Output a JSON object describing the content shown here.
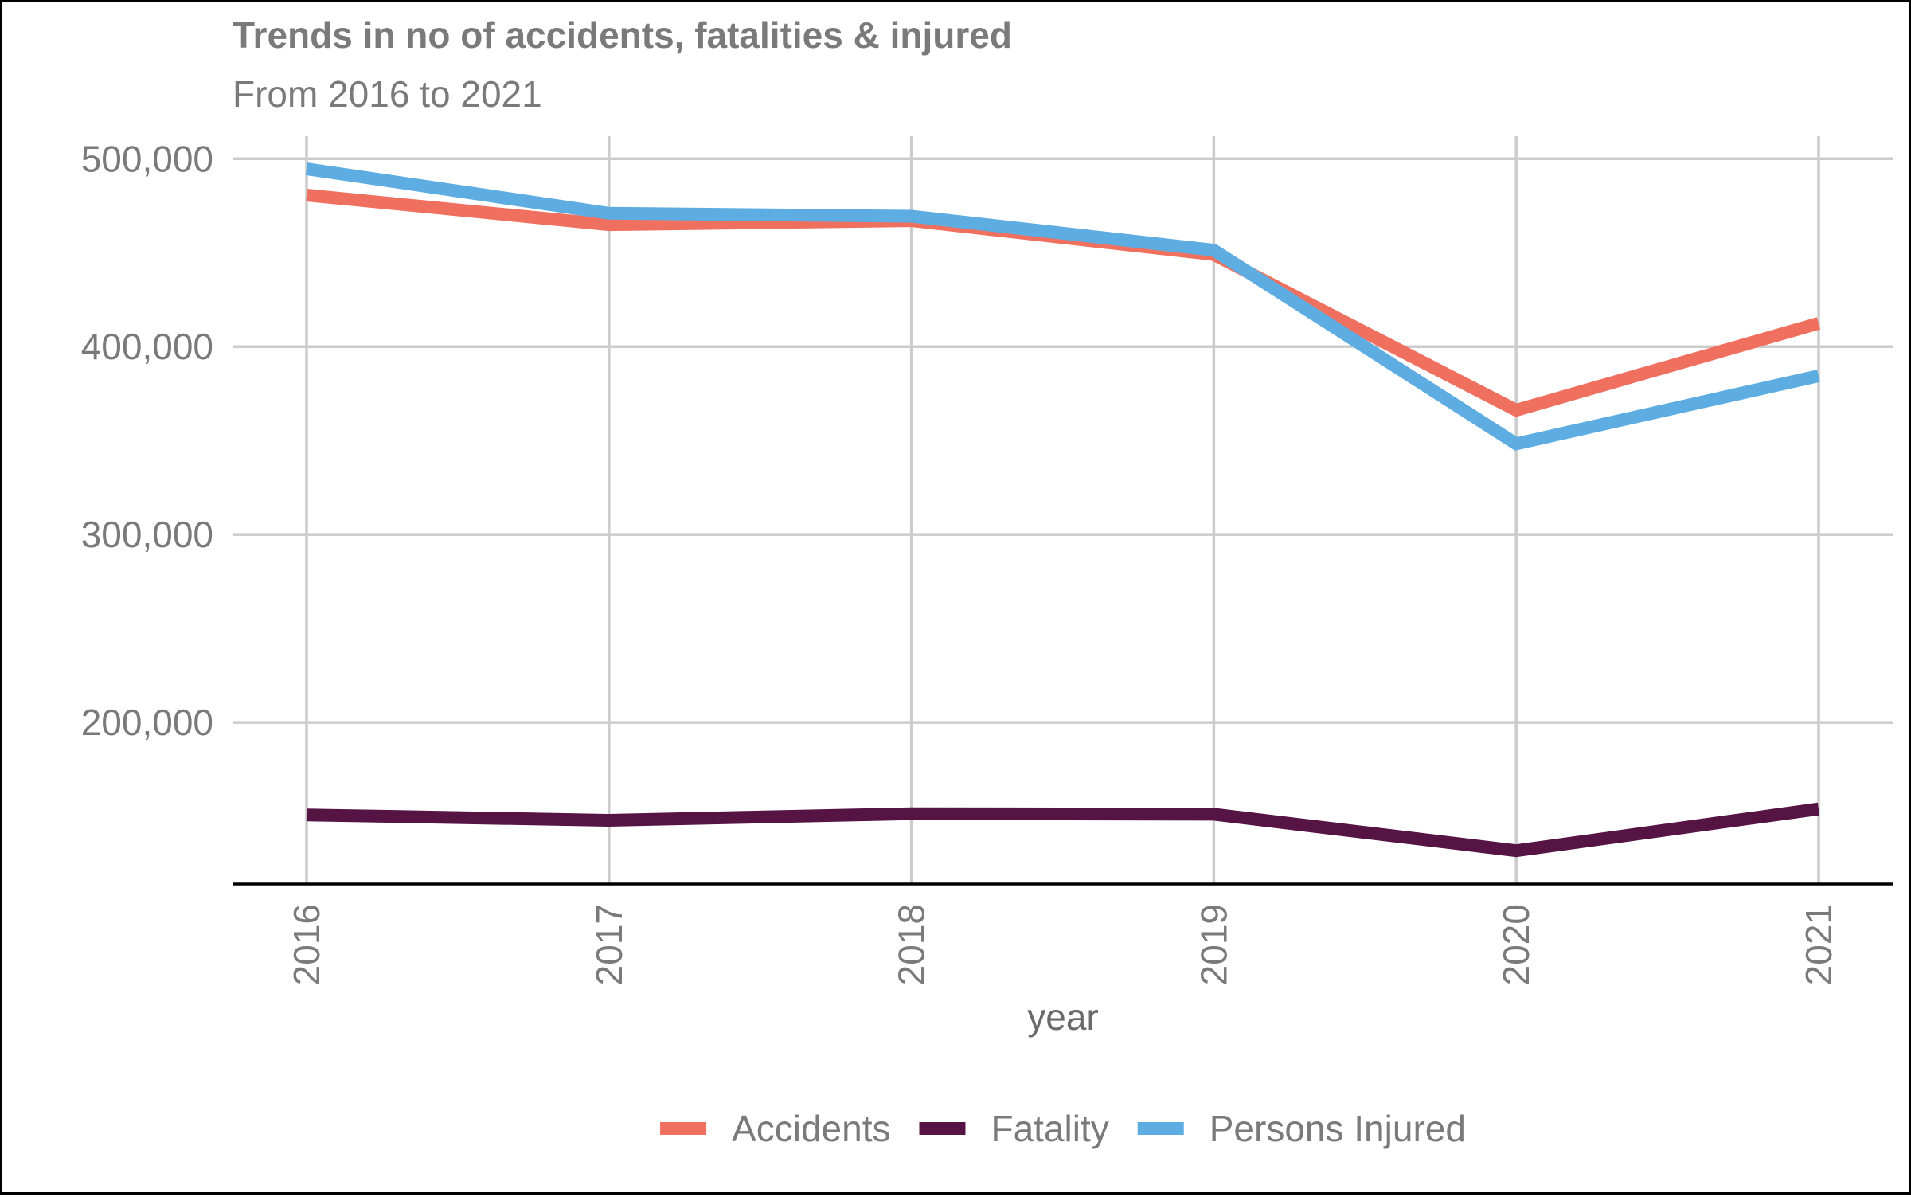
{
  "chart_data": {
    "type": "line",
    "title": "Trends in no of accidents, fatalities & injured",
    "subtitle": "From 2016 to 2021",
    "xlabel": "year",
    "ylabel": "",
    "categories": [
      "2016",
      "2017",
      "2018",
      "2019",
      "2020",
      "2021"
    ],
    "ylim": [
      114000,
      512000
    ],
    "yticks": [
      200000,
      300000,
      400000,
      500000
    ],
    "ytick_labels": [
      "200,000",
      "300,000",
      "400,000",
      "500,000"
    ],
    "grid": true,
    "legend_position": "bottom",
    "series": [
      {
        "name": "Accidents",
        "color": "#f07060",
        "values": [
          480652,
          464910,
          467044,
          449002,
          366138,
          412432
        ]
      },
      {
        "name": "Fatality",
        "color": "#561445",
        "values": [
          150785,
          147913,
          151417,
          151113,
          131714,
          153972
        ]
      },
      {
        "name": "Persons Injured",
        "color": "#5dade2",
        "values": [
          494624,
          470975,
          469418,
          451361,
          348279,
          384448
        ]
      }
    ]
  }
}
